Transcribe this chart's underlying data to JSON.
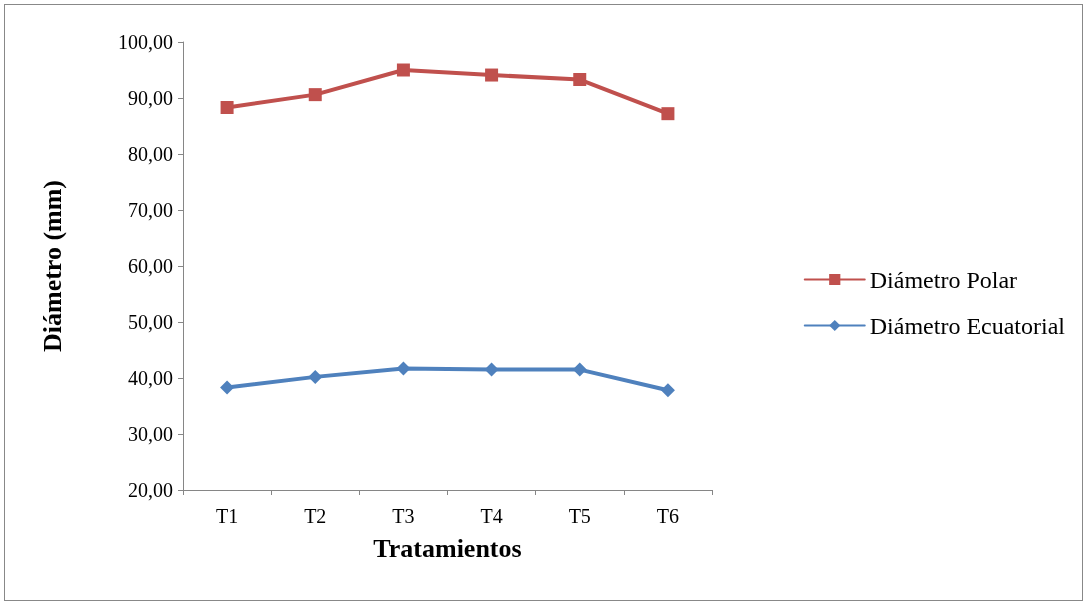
{
  "chart_data": {
    "type": "line",
    "xlabel": "Tratamientos",
    "ylabel": "Diámetro (mm)",
    "categories": [
      "T1",
      "T2",
      "T3",
      "T4",
      "T5",
      "T6"
    ],
    "series": [
      {
        "name": "Diámetro Polar",
        "color": "#c0504d",
        "marker": "square",
        "values": [
          88.3,
          90.6,
          95.0,
          94.1,
          93.3,
          87.2
        ]
      },
      {
        "name": "Diámetro Ecuatorial",
        "color": "#4f81bd",
        "marker": "diamond",
        "values": [
          38.3,
          40.2,
          41.7,
          41.5,
          41.5,
          37.8
        ]
      }
    ],
    "ylim": [
      20,
      100
    ],
    "yticks": [
      {
        "value": 20,
        "label": "20,00"
      },
      {
        "value": 30,
        "label": "30,00"
      },
      {
        "value": 40,
        "label": "40,00"
      },
      {
        "value": 50,
        "label": "50,00"
      },
      {
        "value": 60,
        "label": "60,00"
      },
      {
        "value": 70,
        "label": "70,00"
      },
      {
        "value": 80,
        "label": "80,00"
      },
      {
        "value": 90,
        "label": "90,00"
      },
      {
        "value": 100,
        "label": "100,00"
      }
    ],
    "grid": false,
    "legend": "right",
    "line_style": "solid"
  }
}
